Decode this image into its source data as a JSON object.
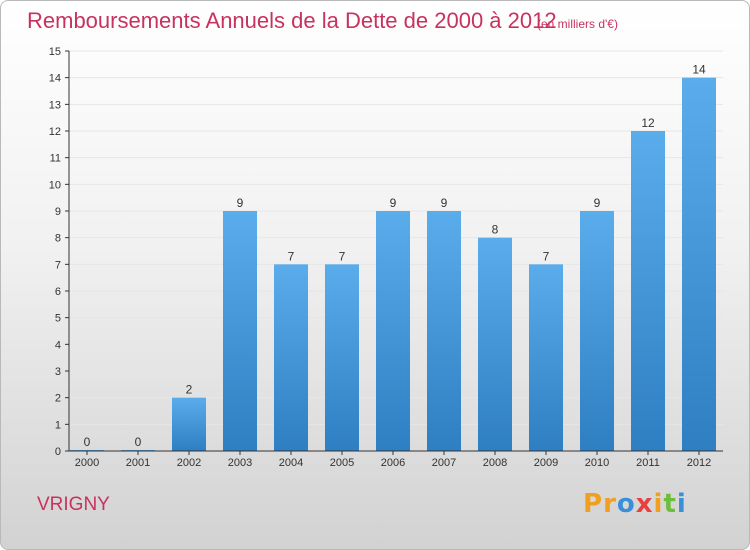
{
  "title": "Remboursements Annuels de la Dette de 2000 à 2012",
  "unit_note": "(en milliers d'€)",
  "commune": "VRIGNY",
  "brand": {
    "name": "Proxiti",
    "letters": [
      {
        "char": "P",
        "color": "#f0a020"
      },
      {
        "char": "r",
        "color": "#f0a020"
      },
      {
        "char": "o",
        "color": "#3a8fd8"
      },
      {
        "char": "x",
        "color": "#e84040"
      },
      {
        "char": "i",
        "color": "#f0a020"
      },
      {
        "char": "t",
        "color": "#6cbf3a"
      },
      {
        "char": "i",
        "color": "#3a8fd8"
      }
    ]
  },
  "colors": {
    "accent": "#c8325f",
    "bar_light": "#5aaceb",
    "bar_dark": "#2e7fc2",
    "axis": "#333333",
    "gridline": "#e6e6e6"
  },
  "chart_data": {
    "type": "bar",
    "categories": [
      "2000",
      "2001",
      "2002",
      "2003",
      "2004",
      "2005",
      "2006",
      "2007",
      "2008",
      "2009",
      "2010",
      "2011",
      "2012"
    ],
    "values": [
      0,
      0,
      2,
      9,
      7,
      7,
      9,
      9,
      8,
      7,
      9,
      12,
      14
    ],
    "data_labels": [
      "0",
      "0",
      "2",
      "9",
      "7",
      "7",
      "9",
      "9",
      "8",
      "7",
      "9",
      "12",
      "14"
    ],
    "title": "Remboursements Annuels de la Dette de 2000 à 2012",
    "xlabel": "",
    "ylabel": "",
    "ylim": [
      0,
      15
    ],
    "yticks": [
      "0",
      "1",
      "2",
      "3",
      "4",
      "5",
      "6",
      "7",
      "8",
      "9",
      "10",
      "11",
      "12",
      "13",
      "14",
      "15"
    ],
    "grid": true,
    "legend": "none"
  }
}
